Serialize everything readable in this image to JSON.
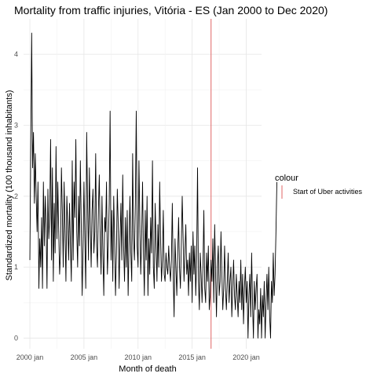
{
  "chart_data": {
    "type": "line",
    "title": "Mortality from traffic injuries, Vitória - ES (Jan 2000 to Dec 2020)",
    "xlabel": "Month of death",
    "ylabel": "Standardized mortality (100 thousand inhabitants)",
    "x_start": "2000-01",
    "x_end": "2020-12",
    "xlim": [
      "1999-06",
      "2021-06"
    ],
    "ylim": [
      -0.15,
      4.5
    ],
    "x_ticks": [
      {
        "date": "2000-01",
        "label": "2000 jan"
      },
      {
        "date": "2005-01",
        "label": "2005 jan"
      },
      {
        "date": "2010-01",
        "label": "2010 jan"
      },
      {
        "date": "2015-01",
        "label": "2015 jan"
      },
      {
        "date": "2020-01",
        "label": "2020 jan"
      }
    ],
    "y_ticks": [
      0,
      1,
      2,
      3,
      4
    ],
    "grid": true,
    "legend_position": "right",
    "legend_title": "colour",
    "reference_line": {
      "date": "2016-10",
      "label": "Start of Uber activities",
      "color": "#e06666"
    },
    "series": [
      {
        "color": "#000000",
        "values": [
          1.1,
          2.7,
          4.3,
          2.4,
          2.9,
          1.9,
          2.6,
          2.0,
          1.5,
          2.2,
          0.7,
          1.4,
          1.0,
          1.7,
          0.7,
          2.2,
          1.3,
          2.0,
          1.6,
          0.7,
          2.1,
          1.4,
          1.7,
          2.8,
          1.1,
          2.4,
          0.8,
          1.9,
          1.2,
          2.7,
          1.4,
          2.2,
          1.5,
          0.9,
          1.2,
          2.4,
          1.8,
          1.0,
          2.2,
          1.5,
          0.8,
          2.0,
          1.6,
          1.1,
          1.9,
          1.3,
          0.8,
          2.5,
          1.1,
          2.2,
          1.7,
          2.8,
          1.5,
          1.0,
          2.0,
          1.3,
          2.5,
          1.6,
          0.6,
          1.3,
          2.2,
          1.4,
          0.7,
          2.9,
          1.9,
          1.1,
          2.4,
          1.6,
          1.0,
          1.8,
          2.1,
          1.2,
          1.5,
          2.6,
          1.3,
          1.0,
          1.8,
          2.3,
          1.4,
          0.9,
          2.0,
          1.2,
          0.6,
          1.7,
          1.5,
          2.2,
          0.9,
          1.3,
          1.9,
          3.2,
          1.1,
          1.8,
          0.8,
          2.0,
          1.4,
          0.6,
          1.2,
          2.1,
          1.6,
          0.7,
          1.4,
          1.9,
          1.1,
          2.3,
          1.3,
          0.8,
          1.7,
          1.0,
          1.8,
          0.6,
          1.3,
          2.0,
          1.2,
          0.8,
          2.6,
          1.4,
          1.1,
          1.9,
          3.2,
          1.3,
          1.0,
          2.5,
          1.6,
          0.9,
          1.4,
          2.2,
          1.2,
          0.6,
          1.8,
          1.1,
          2.0,
          0.6,
          1.4,
          0.9,
          1.7,
          1.2,
          2.5,
          1.0,
          0.7,
          1.9,
          1.3,
          0.8,
          1.6,
          1.0,
          2.2,
          1.4,
          0.8,
          1.1,
          1.8,
          0.9,
          0.8,
          1.2,
          1.0,
          0.9,
          1.3,
          1.0,
          0.8,
          1.1,
          1.9,
          0.9,
          0.3,
          1.4,
          1.0,
          0.6,
          1.2,
          1.7,
          1.0,
          0.7,
          1.3,
          2.0,
          1.4,
          0.8,
          1.2,
          1.6,
          0.9,
          1.1,
          0.6,
          1.2,
          0.8,
          1.3,
          0.5,
          1.5,
          0.9,
          1.3,
          0.6,
          1.1,
          2.4,
          0.8,
          0.4,
          1.2,
          0.9,
          0.5,
          1.0,
          1.8,
          0.7,
          0.5,
          1.2,
          0.8,
          1.3,
          0.4,
          0.6,
          1.1,
          0.8,
          1.4,
          0.5,
          1.6,
          0.9,
          0.3,
          1.0,
          1.3,
          0.6,
          0.8,
          1.5,
          0.9,
          0.4,
          0.7,
          1.3,
          0.7,
          0.4,
          0.8,
          1.2,
          0.5,
          0.8,
          1.0,
          0.3,
          0.7,
          1.1,
          0.6,
          0.4,
          0.9,
          0.6,
          0.3,
          0.8,
          0.5,
          1.1,
          0.4,
          0.9,
          0.2,
          0.7,
          1.0,
          0.5,
          0.8,
          0.0,
          0.6,
          0.9,
          0.3,
          1.2,
          0.5,
          0.0,
          0.8,
          0.4,
          0.7,
          0.9,
          0.0,
          0.4,
          0.2,
          0.7,
          0.0,
          0.6,
          0.3,
          0.8,
          0.0,
          0.5,
          0.9,
          0.4,
          1.0,
          0.3,
          0.0,
          0.8,
          0.5,
          1.2,
          0.6,
          0.9,
          1.5,
          2.2
        ]
      }
    ]
  }
}
